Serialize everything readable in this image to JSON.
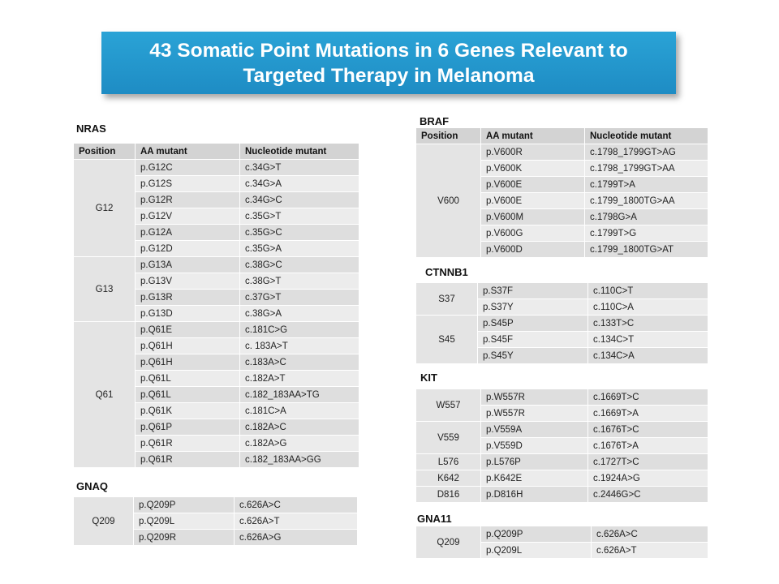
{
  "title": {
    "line1": "43 Somatic Point Mutations in 6 Genes Relevant to",
    "line2": "Targeted Therapy in Melanoma"
  },
  "headers": {
    "position": "Position",
    "aa": "AA mutant",
    "nuc": "Nucleotide mutant"
  },
  "nras": {
    "label": "NRAS",
    "groups": [
      {
        "position": "G12",
        "rows": [
          [
            "p.G12C",
            "c.34G>T"
          ],
          [
            "p.G12S",
            "c.34G>A"
          ],
          [
            "p.G12R",
            "c.34G>C"
          ],
          [
            "p.G12V",
            "c.35G>T"
          ],
          [
            "p.G12A",
            "c.35G>C"
          ],
          [
            "p.G12D",
            "c.35G>A"
          ]
        ]
      },
      {
        "position": "G13",
        "rows": [
          [
            "p.G13A",
            "c.38G>C"
          ],
          [
            "p.G13V",
            "c.38G>T"
          ],
          [
            "p.G13R",
            "c.37G>T"
          ],
          [
            "p.G13D",
            "c.38G>A"
          ]
        ]
      },
      {
        "position": "Q61",
        "rows": [
          [
            "p.Q61E",
            "c.181C>G"
          ],
          [
            "p.Q61H",
            "c. 183A>T"
          ],
          [
            "p.Q61H",
            "c.183A>C"
          ],
          [
            "p.Q61L",
            "c.182A>T"
          ],
          [
            "p.Q61L",
            "c.182_183AA>TG"
          ],
          [
            "p.Q61K",
            "c.181C>A"
          ],
          [
            "p.Q61P",
            "c.182A>C"
          ],
          [
            "p.Q61R",
            "c.182A>G"
          ],
          [
            "p.Q61R",
            "c.182_183AA>GG"
          ]
        ]
      }
    ]
  },
  "gnaq": {
    "label": "GNAQ",
    "groups": [
      {
        "position": "Q209",
        "rows": [
          [
            "p.Q209P",
            "c.626A>C"
          ],
          [
            "p.Q209L",
            "c.626A>T"
          ],
          [
            "p.Q209R",
            "c.626A>G"
          ]
        ]
      }
    ]
  },
  "braf": {
    "label": "BRAF",
    "groups": [
      {
        "position": "V600",
        "rows": [
          [
            "p.V600R",
            "c.1798_1799GT>AG"
          ],
          [
            "p.V600K",
            "c.1798_1799GT>AA"
          ],
          [
            "p.V600E",
            "c.1799T>A"
          ],
          [
            "p.V600E",
            "c.1799_1800TG>AA"
          ],
          [
            "p.V600M",
            "c.1798G>A"
          ],
          [
            "p.V600G",
            "c.1799T>G"
          ],
          [
            "p.V600D",
            "c.1799_1800TG>AT"
          ]
        ]
      }
    ]
  },
  "ctnnb1": {
    "label": "CTNNB1",
    "groups": [
      {
        "position": "S37",
        "rows": [
          [
            "p.S37F",
            "c.110C>T"
          ],
          [
            "p.S37Y",
            "c.110C>A"
          ]
        ]
      },
      {
        "position": "S45",
        "rows": [
          [
            "p.S45P",
            "c.133T>C"
          ],
          [
            "p.S45F",
            "c.134C>T"
          ],
          [
            "p.S45Y",
            "c.134C>A"
          ]
        ]
      }
    ]
  },
  "kit": {
    "label": "KIT",
    "groups": [
      {
        "position": "W557",
        "rows": [
          [
            "p.W557R",
            "c.1669T>C"
          ],
          [
            "p.W557R",
            "c.1669T>A"
          ]
        ]
      },
      {
        "position": "V559",
        "rows": [
          [
            "p.V559A",
            "c.1676T>C"
          ],
          [
            "p.V559D",
            "c.1676T>A"
          ]
        ]
      },
      {
        "position": "L576",
        "rows": [
          [
            "p.L576P",
            "c.1727T>C"
          ]
        ]
      },
      {
        "position": "K642",
        "rows": [
          [
            "p.K642E",
            "c.1924A>G"
          ]
        ]
      },
      {
        "position": "D816",
        "rows": [
          [
            "p.D816H",
            "c.2446G>C"
          ]
        ]
      }
    ]
  },
  "gna11": {
    "label": "GNA11",
    "groups": [
      {
        "position": "Q209",
        "rows": [
          [
            "p.Q209P",
            "c.626A>C"
          ],
          [
            "p.Q209L",
            "c.626A>T"
          ]
        ]
      }
    ]
  }
}
